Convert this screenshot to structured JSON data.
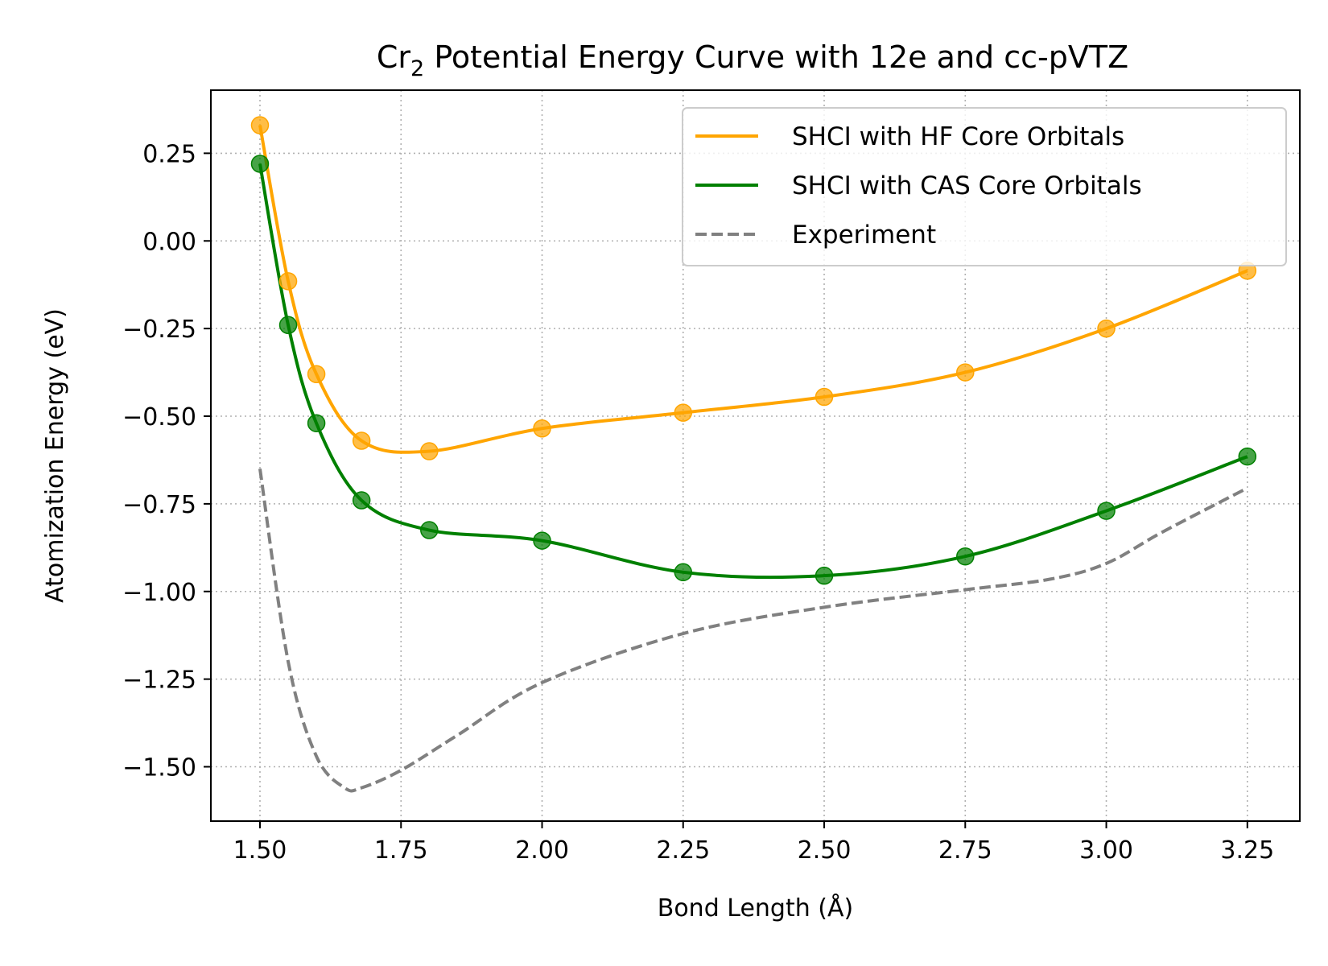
{
  "chart_data": {
    "type": "line",
    "title": {
      "prefix": "Cr",
      "subscript": "2",
      "suffix": " Potential Energy Curve with 12e and cc-pVTZ"
    },
    "xlabel": "Bond Length (Å)",
    "ylabel": "Atomization Energy (eV)",
    "xlim": [
      1.413,
      3.343
    ],
    "ylim": [
      -1.655,
      0.43
    ],
    "xticks": [
      1.5,
      1.75,
      2.0,
      2.25,
      2.5,
      2.75,
      3.0,
      3.25
    ],
    "xtick_labels": [
      "1.50",
      "1.75",
      "2.00",
      "2.25",
      "2.50",
      "2.75",
      "3.00",
      "3.25"
    ],
    "yticks": [
      0.25,
      0.0,
      -0.25,
      -0.5,
      -0.75,
      -1.0,
      -1.25,
      -1.5
    ],
    "ytick_labels": [
      "0.25",
      "0.00",
      "−0.25",
      "−0.50",
      "−0.75",
      "−1.00",
      "−1.25",
      "−1.50"
    ],
    "grid": true,
    "legend_position": "top-right",
    "series": [
      {
        "name": "SHCI with HF Core Orbitals",
        "color": "#ffa500",
        "style": "solid",
        "markers": true,
        "x": [
          1.5,
          1.55,
          1.6,
          1.68,
          1.8,
          2.0,
          2.25,
          2.5,
          2.75,
          3.0,
          3.25
        ],
        "y": [
          0.33,
          -0.115,
          -0.38,
          -0.57,
          -0.6,
          -0.535,
          -0.49,
          -0.445,
          -0.375,
          -0.25,
          -0.085
        ]
      },
      {
        "name": "SHCI with CAS Core Orbitals",
        "color": "#008000",
        "style": "solid",
        "markers": true,
        "x": [
          1.5,
          1.55,
          1.6,
          1.68,
          1.8,
          2.0,
          2.25,
          2.5,
          2.75,
          3.0,
          3.25
        ],
        "y": [
          0.22,
          -0.24,
          -0.52,
          -0.74,
          -0.825,
          -0.855,
          -0.945,
          -0.955,
          -0.9,
          -0.77,
          -0.615
        ]
      },
      {
        "name": "Experiment",
        "color": "#808080",
        "style": "dashed",
        "markers": false,
        "x": [
          1.5,
          1.55,
          1.6,
          1.65,
          1.68,
          1.75,
          1.85,
          2.0,
          2.25,
          2.5,
          2.75,
          2.9,
          3.0,
          3.1,
          3.25
        ],
        "y": [
          -0.65,
          -1.2,
          -1.47,
          -1.56,
          -1.56,
          -1.51,
          -1.41,
          -1.26,
          -1.12,
          -1.045,
          -0.995,
          -0.965,
          -0.92,
          -0.83,
          -0.705
        ]
      }
    ]
  }
}
